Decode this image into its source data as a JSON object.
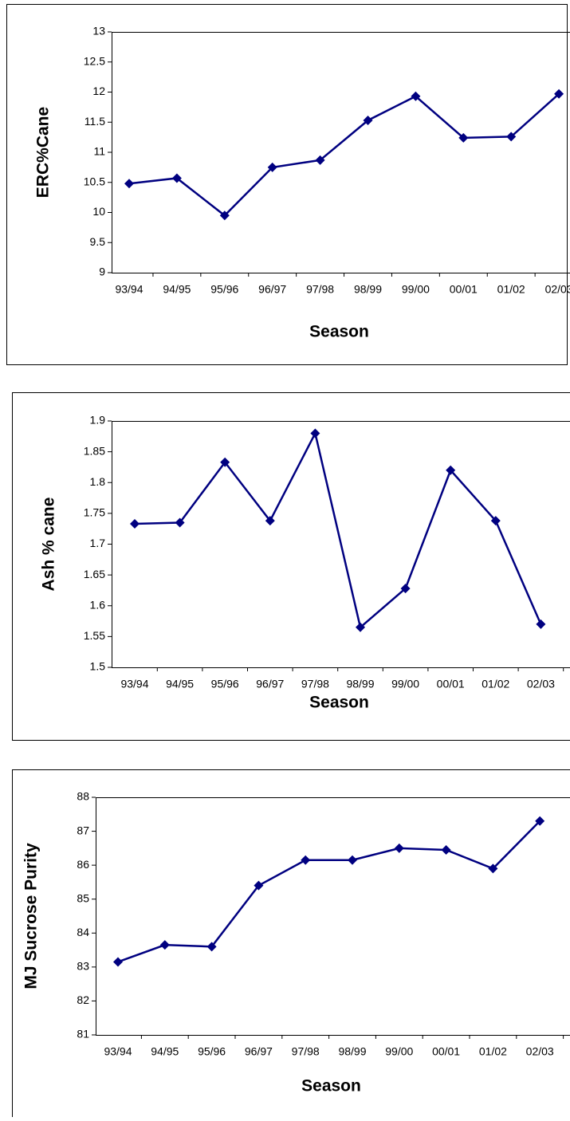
{
  "chart_data": [
    {
      "type": "line",
      "x_label": "Season",
      "y_label": "ERC%Cane",
      "categories": [
        "93/94",
        "94/95",
        "95/96",
        "96/97",
        "97/98",
        "98/99",
        "99/00",
        "00/01",
        "01/02",
        "02/03"
      ],
      "series": [
        {
          "color": "#000080",
          "values": [
            10.48,
            10.57,
            9.95,
            10.75,
            10.87,
            11.53,
            11.93,
            11.24,
            11.26,
            11.97
          ]
        }
      ],
      "ylim": [
        9,
        13
      ],
      "yticks": [
        9,
        9.5,
        10,
        10.5,
        11,
        11.5,
        12,
        12.5,
        13
      ]
    },
    {
      "type": "line",
      "x_label": "Season",
      "y_label": "Ash % cane",
      "categories": [
        "93/94",
        "94/95",
        "95/96",
        "96/97",
        "97/98",
        "98/99",
        "99/00",
        "00/01",
        "01/02",
        "02/03"
      ],
      "series": [
        {
          "color": "#000080",
          "values": [
            1.733,
            1.735,
            1.833,
            1.738,
            1.88,
            1.565,
            1.628,
            1.82,
            1.738,
            1.57
          ]
        }
      ],
      "ylim": [
        1.5,
        1.9
      ],
      "yticks": [
        1.5,
        1.55,
        1.6,
        1.65,
        1.7,
        1.75,
        1.8,
        1.85,
        1.9
      ]
    },
    {
      "type": "line",
      "x_label": "Season",
      "y_label": "MJ Sucrose Purity",
      "categories": [
        "93/94",
        "94/95",
        "95/96",
        "96/97",
        "97/98",
        "98/99",
        "99/00",
        "00/01",
        "01/02",
        "02/03"
      ],
      "series": [
        {
          "color": "#000080",
          "values": [
            83.15,
            83.65,
            83.6,
            85.4,
            86.15,
            86.15,
            86.5,
            86.45,
            85.9,
            87.3
          ]
        }
      ],
      "ylim": [
        81,
        88
      ],
      "yticks": [
        81,
        82,
        83,
        84,
        85,
        86,
        87,
        88
      ]
    }
  ]
}
